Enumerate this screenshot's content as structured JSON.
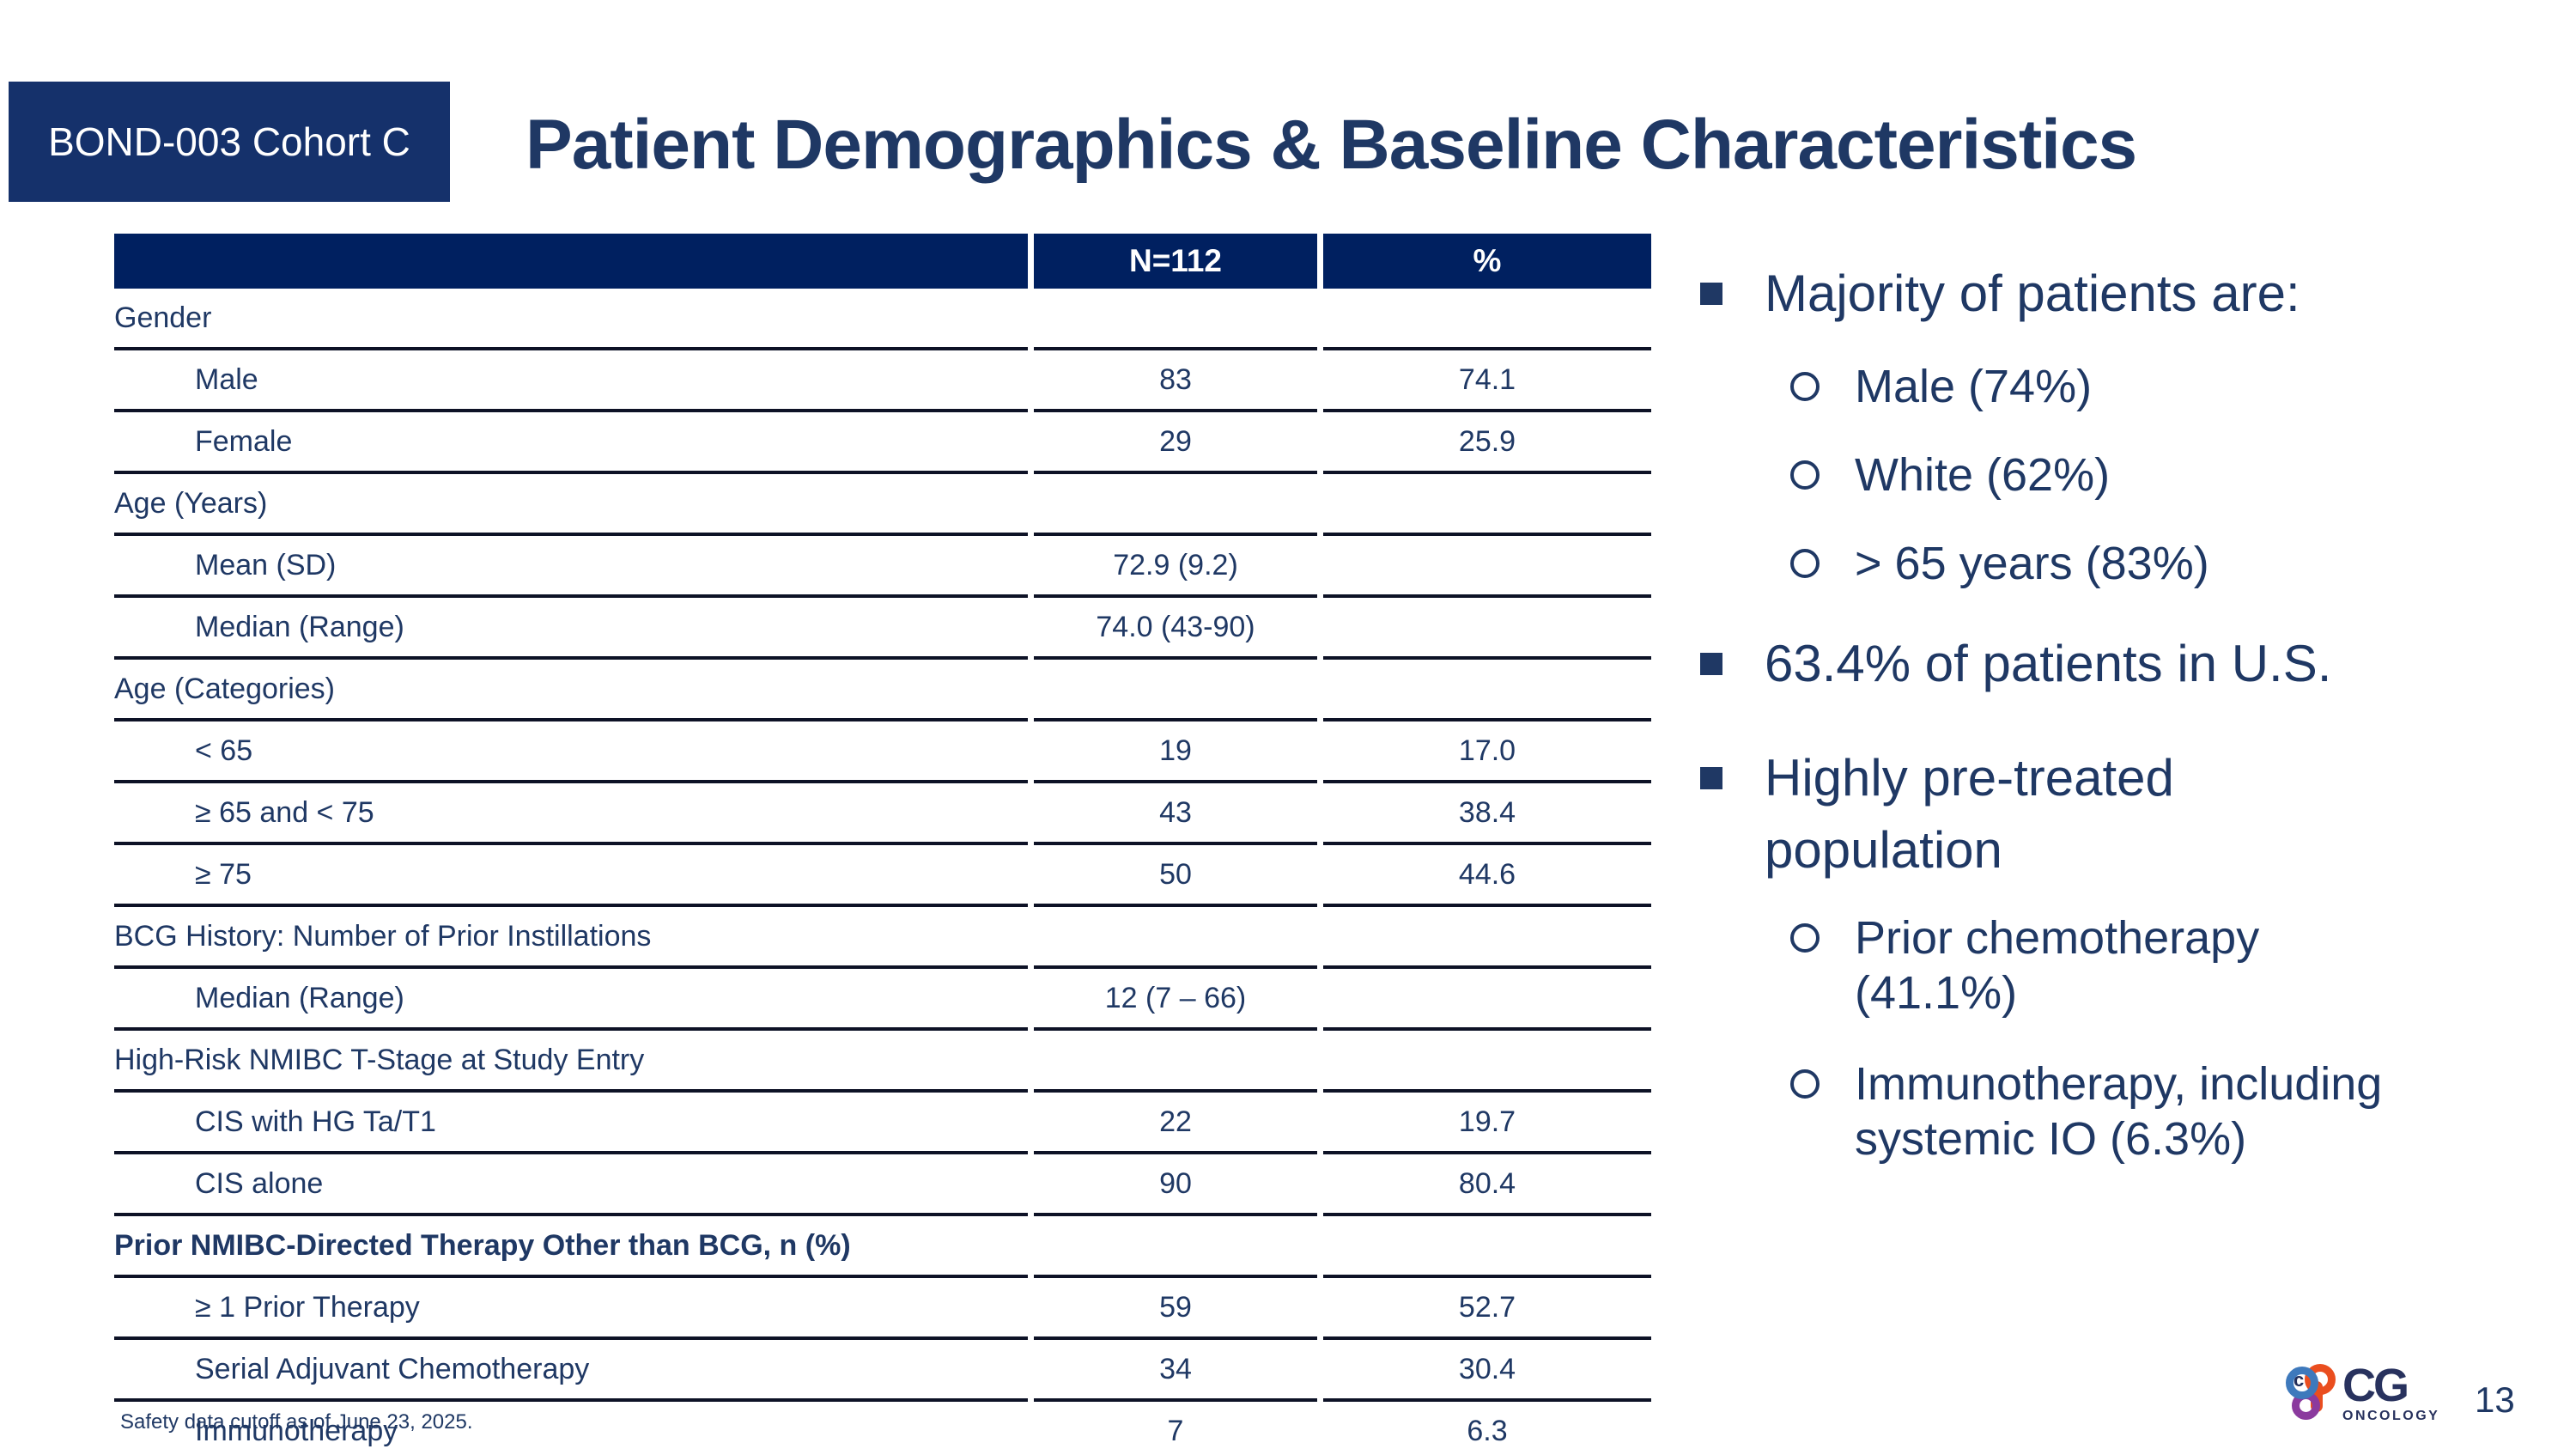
{
  "slide": {
    "badge": "BOND-003 Cohort C",
    "title": "Patient Demographics & Baseline Characteristics",
    "footnote": "Safety data cutoff as of June 23, 2025.",
    "page_number": "13",
    "colors": {
      "navy_text": "#1F3864",
      "table_header_bg": "#002060",
      "badge_bg": "#15316B",
      "rule": "#0D1226",
      "logo_blue": "#3E79BC",
      "logo_orange": "#EA4E1F",
      "logo_purple": "#8B3A9E",
      "logo_navy": "#28325E"
    }
  },
  "table": {
    "columns": [
      "",
      "N=112",
      "%"
    ],
    "rows": [
      {
        "label": "Gender",
        "type": "category"
      },
      {
        "label": "Male",
        "type": "item",
        "n": "83",
        "pct": "74.1"
      },
      {
        "label": "Female",
        "type": "item",
        "n": "29",
        "pct": "25.9"
      },
      {
        "label": "Age (Years)",
        "type": "category"
      },
      {
        "label": "Mean (SD)",
        "type": "item",
        "n": "72.9 (9.2)",
        "pct": ""
      },
      {
        "label": "Median (Range)",
        "type": "item",
        "n": "74.0 (43-90)",
        "pct": ""
      },
      {
        "label": "Age (Categories)",
        "type": "category"
      },
      {
        "label": "< 65",
        "type": "item",
        "n": "19",
        "pct": "17.0"
      },
      {
        "label": "≥ 65 and < 75",
        "type": "item",
        "n": "43",
        "pct": "38.4"
      },
      {
        "label": "≥ 75",
        "type": "item",
        "n": "50",
        "pct": "44.6"
      },
      {
        "label": "BCG History: Number of Prior Instillations",
        "type": "category"
      },
      {
        "label": "Median (Range)",
        "type": "item",
        "n": "12 (7 – 66)",
        "pct": ""
      },
      {
        "label": "High-Risk NMIBC T-Stage at Study Entry",
        "type": "category"
      },
      {
        "label": "CIS with HG Ta/T1",
        "type": "item",
        "n": "22",
        "pct": "19.7"
      },
      {
        "label": "CIS alone",
        "type": "item",
        "n": "90",
        "pct": "80.4"
      },
      {
        "label": "Prior NMIBC-Directed Therapy Other than BCG, n (%)",
        "type": "category",
        "bold": true
      },
      {
        "label": "≥ 1 Prior Therapy",
        "type": "item",
        "n": "59",
        "pct": "52.7"
      },
      {
        "label": "Serial Adjuvant Chemotherapy",
        "type": "item",
        "n": "34",
        "pct": "30.4"
      },
      {
        "label": "Immunotherapy",
        "type": "item",
        "n": "7",
        "pct": "6.3"
      }
    ]
  },
  "bullets": [
    {
      "level": 1,
      "lines": [
        "Majority of patients are:"
      ]
    },
    {
      "level": 2,
      "lines": [
        "Male (74%)"
      ]
    },
    {
      "level": 2,
      "lines": [
        "White (62%)"
      ]
    },
    {
      "level": 2,
      "lines": [
        "> 65 years (83%)"
      ]
    },
    {
      "level": 1,
      "lines": [
        "63.4% of patients in U.S."
      ]
    },
    {
      "level": 1,
      "lines": [
        "Highly pre-treated",
        "population"
      ]
    },
    {
      "level": 2,
      "lines": [
        "Prior chemotherapy",
        "(41.1%)"
      ]
    },
    {
      "level": 2,
      "lines": [
        "Immunotherapy, including",
        "systemic IO (6.3%)"
      ]
    }
  ],
  "logo": {
    "name": "CG Oncology",
    "text": "CG",
    "subtext": "ONCOLOGY"
  }
}
